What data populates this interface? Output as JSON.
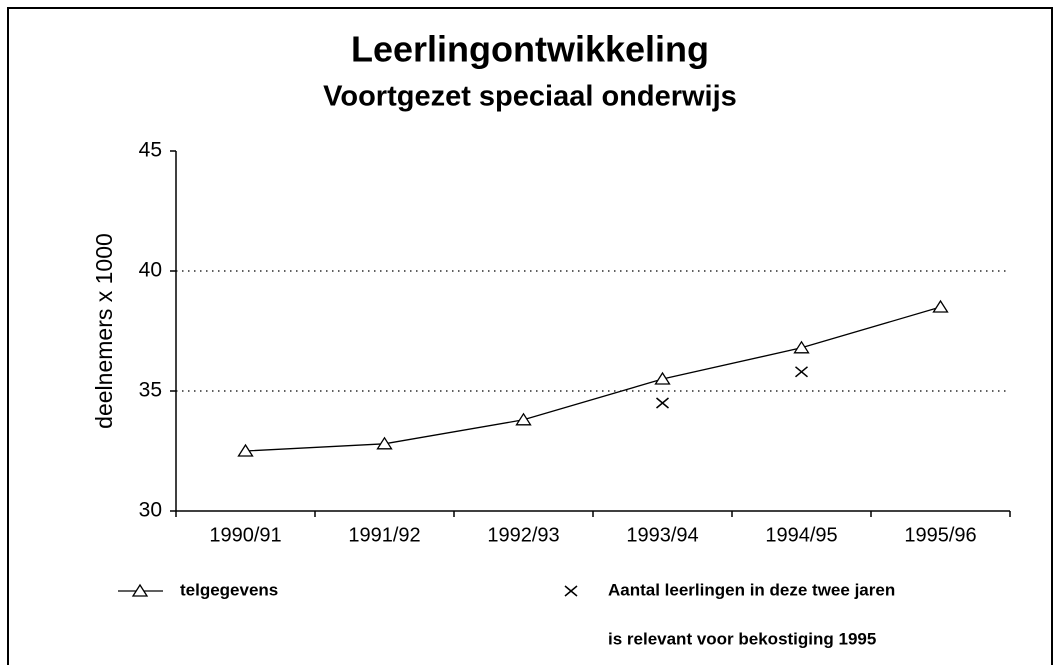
{
  "chart_data": {
    "type": "line",
    "title": "Leerlingontwikkeling",
    "subtitle": "Voortgezet speciaal onderwijs",
    "y_label": "deelnemers x 1000",
    "categories": [
      "1990/91",
      "1991/92",
      "1992/93",
      "1993/94",
      "1994/95",
      "1995/96"
    ],
    "series": [
      {
        "name": "telgegevens",
        "color": "#000000",
        "marker": "triangle",
        "line": true,
        "values": [
          32.5,
          32.8,
          33.8,
          35.5,
          36.8,
          38.5
        ]
      },
      {
        "name": "Aantal leerlingen in deze twee jaren",
        "color": "#000000",
        "marker": "cross",
        "line": false,
        "values": [
          null,
          null,
          null,
          34.5,
          35.8,
          null
        ]
      }
    ],
    "annotation": "is relevant voor bekostiging 1995",
    "ylim": [
      30,
      45
    ],
    "yticks": [
      30,
      35,
      40,
      45
    ],
    "grid": true
  }
}
